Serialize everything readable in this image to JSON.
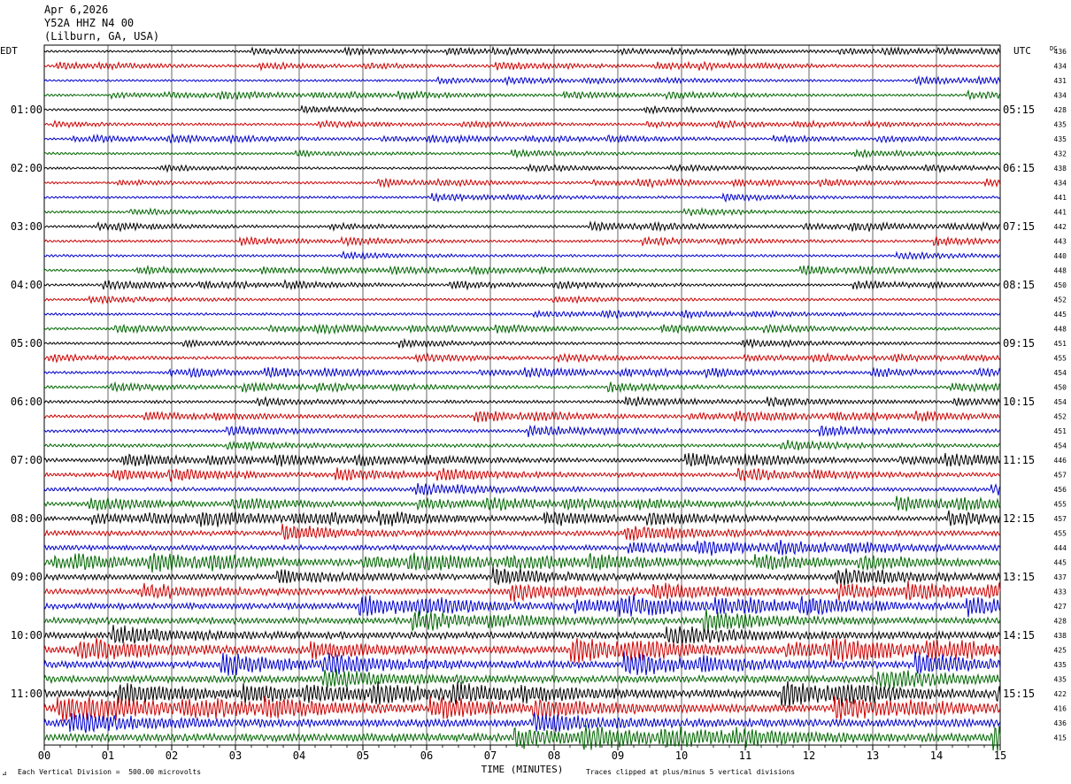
{
  "header": {
    "date": "Apr 6,2026",
    "station": "Y52A HHZ N4 00",
    "location": "(Lilburn, GA, USA)"
  },
  "footer": {
    "scale_note": "Each Vertical Division =  500.00 microvolts",
    "clip_note": "Traces clipped at plus/minus 5 vertical divisions"
  },
  "colors": {
    "trace_cycle": [
      "#000000",
      "#cc0000",
      "#0000cc",
      "#006600"
    ],
    "grid": "#000000"
  },
  "chart_data": {
    "type": "line",
    "title": "",
    "xlabel": "TIME (MINUTES)",
    "x_ticks": [
      "00",
      "01",
      "02",
      "03",
      "04",
      "05",
      "06",
      "07",
      "08",
      "09",
      "10",
      "11",
      "12",
      "13",
      "14",
      "15"
    ],
    "xlim": [
      0,
      15
    ],
    "left_axis_label": "EDT",
    "right_axis_label": "UTC",
    "dc_label": "DC",
    "left_hour_labels": [
      "01:00",
      "02:00",
      "03:00",
      "04:00",
      "05:00",
      "06:00",
      "07:00",
      "08:00",
      "09:00",
      "10:00",
      "11:00"
    ],
    "right_hour_labels": [
      "05:15",
      "06:15",
      "07:15",
      "08:15",
      "09:15",
      "10:15",
      "11:15",
      "12:15",
      "13:15",
      "14:15",
      "15:15"
    ],
    "dc_offsets": [
      436,
      434,
      431,
      434,
      428,
      435,
      435,
      432,
      438,
      434,
      441,
      441,
      442,
      443,
      440,
      448,
      450,
      452,
      445,
      448,
      451,
      455,
      454,
      450,
      454,
      452,
      451,
      454,
      446,
      457,
      456,
      455,
      457,
      455,
      444,
      445,
      437,
      433,
      427,
      428,
      438,
      425,
      435,
      435,
      422,
      416,
      436,
      415
    ],
    "trace_count": 48,
    "traces_per_hour": 4,
    "minutes_per_trace": 15,
    "relative_amplitude": [
      0.9,
      0.9,
      0.9,
      0.95,
      0.9,
      0.9,
      0.9,
      0.95,
      0.9,
      0.9,
      0.95,
      1.0,
      1.0,
      1.0,
      1.0,
      1.0,
      1.0,
      1.0,
      1.0,
      1.05,
      1.05,
      1.05,
      1.1,
      1.1,
      1.2,
      1.2,
      1.3,
      1.35,
      1.5,
      1.6,
      1.6,
      1.7,
      1.8,
      2.0,
      2.0,
      2.1,
      2.3,
      2.3,
      2.4,
      2.5,
      2.7,
      2.8,
      2.8,
      2.8,
      2.9,
      2.9,
      3.0,
      3.1
    ],
    "grid": true
  }
}
